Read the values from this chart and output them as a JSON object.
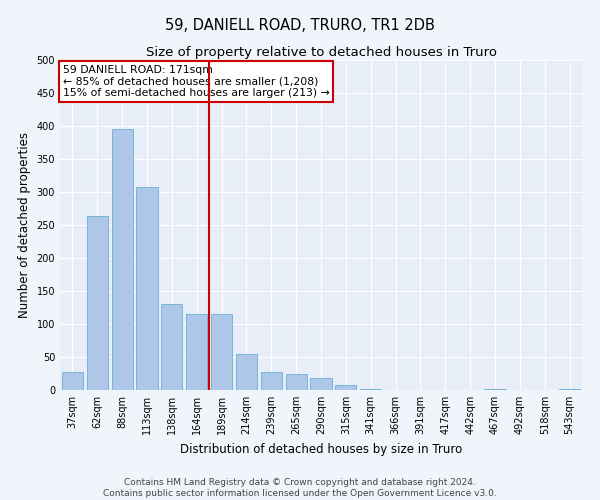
{
  "title": "59, DANIELL ROAD, TRURO, TR1 2DB",
  "subtitle": "Size of property relative to detached houses in Truro",
  "xlabel": "Distribution of detached houses by size in Truro",
  "ylabel": "Number of detached properties",
  "categories": [
    "37sqm",
    "62sqm",
    "88sqm",
    "113sqm",
    "138sqm",
    "164sqm",
    "189sqm",
    "214sqm",
    "239sqm",
    "265sqm",
    "290sqm",
    "315sqm",
    "341sqm",
    "366sqm",
    "391sqm",
    "417sqm",
    "442sqm",
    "467sqm",
    "492sqm",
    "518sqm",
    "543sqm"
  ],
  "values": [
    28,
    263,
    395,
    308,
    130,
    115,
    115,
    55,
    28,
    25,
    18,
    8,
    2,
    0,
    0,
    0,
    0,
    2,
    0,
    0,
    2
  ],
  "bar_color": "#aec6e8",
  "bar_edge_color": "#6aaed6",
  "vline_color": "#cc0000",
  "vline_x_idx": 6,
  "annotation_text": "59 DANIELL ROAD: 171sqm\n← 85% of detached houses are smaller (1,208)\n15% of semi-detached houses are larger (213) →",
  "annotation_box_edgecolor": "#cc0000",
  "ylim": [
    0,
    500
  ],
  "yticks": [
    0,
    50,
    100,
    150,
    200,
    250,
    300,
    350,
    400,
    450,
    500
  ],
  "footer_line1": "Contains HM Land Registry data © Crown copyright and database right 2024.",
  "footer_line2": "Contains public sector information licensed under the Open Government Licence v3.0.",
  "fig_bg_color": "#f0f4fb",
  "plot_bg_color": "#e8eef8",
  "grid_color": "#ffffff",
  "title_fontsize": 10.5,
  "subtitle_fontsize": 9.5,
  "axis_label_fontsize": 8.5,
  "tick_fontsize": 7,
  "annotation_fontsize": 7.8,
  "footer_fontsize": 6.5
}
